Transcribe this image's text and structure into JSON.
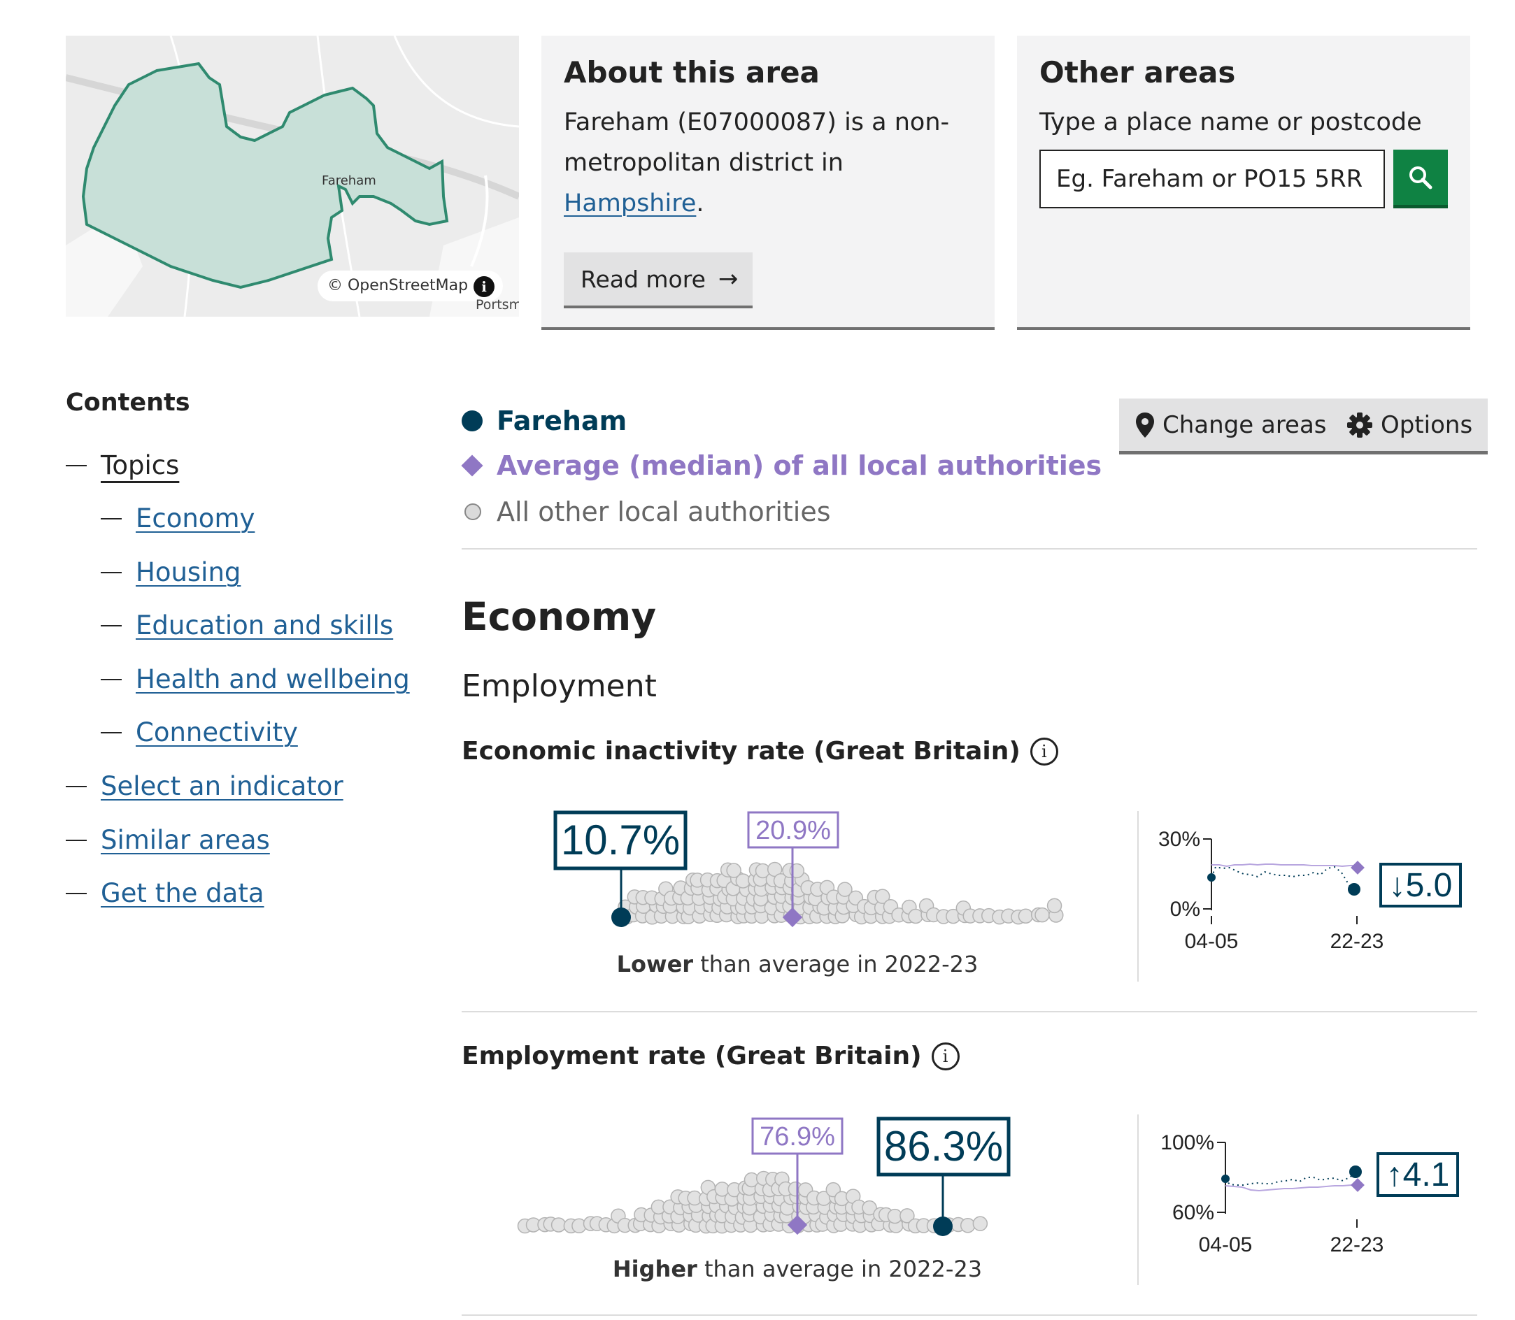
{
  "map": {
    "place_label": "Fareham",
    "attribution": "© OpenStreetMap",
    "corner_label": "Portsm"
  },
  "about": {
    "heading": "About this area",
    "text_before_link": "Fareham (E07000087) is a non-metropolitan district in ",
    "link": "Hampshire",
    "text_after_link": ".",
    "read_more": "Read more"
  },
  "other_areas": {
    "heading": "Other areas",
    "label": "Type a place name or postcode",
    "placeholder": "Eg. Fareham or PO15 5RR"
  },
  "contents": {
    "title": "Contents",
    "items": [
      {
        "label": "Topics",
        "current": true
      },
      {
        "label": "Economy"
      },
      {
        "label": "Housing"
      },
      {
        "label": "Education and skills"
      },
      {
        "label": "Health and wellbeing"
      },
      {
        "label": "Connectivity"
      },
      {
        "label": "Select an indicator"
      },
      {
        "label": "Similar areas"
      },
      {
        "label": "Get the data"
      }
    ]
  },
  "legend": {
    "area": "Fareham",
    "average": "Average (median) of all local authorities",
    "others": "All other local authorities"
  },
  "buttons": {
    "change_areas": "Change areas",
    "options": "Options"
  },
  "section": {
    "title": "Economy",
    "subtitle": "Employment"
  },
  "colors": {
    "area": "#003c57",
    "average": "#8f77c4",
    "others": "#dadada",
    "link": "#206095",
    "search_button": "#0f8243"
  },
  "indicators": [
    {
      "title": "Economic inactivity rate (Great Britain)",
      "area_value": "10.7%",
      "average_value": "20.9%",
      "caption_strong": "Lower",
      "caption_rest": " than average in 2022-23",
      "trend": {
        "y_max_label": "30%",
        "y_min_label": "0%",
        "x_start": "04-05",
        "x_end": "22-23",
        "change": "↓5.0"
      }
    },
    {
      "title": "Employment rate (Great Britain)",
      "area_value": "86.3%",
      "average_value": "76.9%",
      "caption_strong": "Higher",
      "caption_rest": " than average in 2022-23",
      "trend": {
        "y_max_label": "100%",
        "y_min_label": "60%",
        "x_start": "04-05",
        "x_end": "22-23",
        "change": "↑4.1"
      }
    }
  ]
}
